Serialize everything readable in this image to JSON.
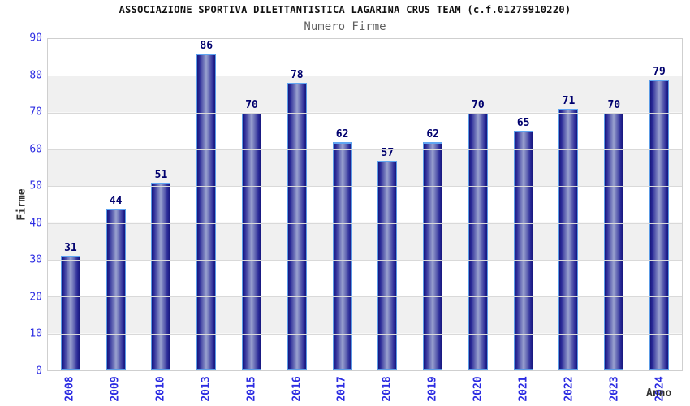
{
  "chart_data": {
    "type": "bar",
    "title": "ASSOCIAZIONE SPORTIVA DILETTANTISTICA LAGARINA CRUS TEAM (c.f.01275910220)",
    "subtitle": "Numero Firme",
    "xlabel": "Anno",
    "ylabel": "Firme",
    "categories": [
      "2008",
      "2009",
      "2010",
      "2013",
      "2015",
      "2016",
      "2017",
      "2018",
      "2019",
      "2020",
      "2021",
      "2022",
      "2023",
      "2024"
    ],
    "values": [
      31,
      44,
      51,
      86,
      70,
      78,
      62,
      57,
      62,
      70,
      65,
      71,
      70,
      79
    ],
    "ylim": [
      0,
      90
    ],
    "yticks": [
      0,
      10,
      20,
      30,
      40,
      50,
      60,
      70,
      80,
      90
    ],
    "grid": "horizontal alternating bands every 10 units, light gray lines",
    "legend": "none",
    "colors": {
      "bar_edge_dark": "#17177d",
      "bar_center_light": "#9aa2cf",
      "bar_outline": "#5b9be6",
      "value_label": "#00006e",
      "axis_tick_text": "#2b2be2",
      "band_gray": "#f0f0f0",
      "gridline": "#d9d9d9",
      "title_text": "#111111",
      "subtitle_text": "#606060",
      "axis_name_text": "#333333"
    }
  }
}
